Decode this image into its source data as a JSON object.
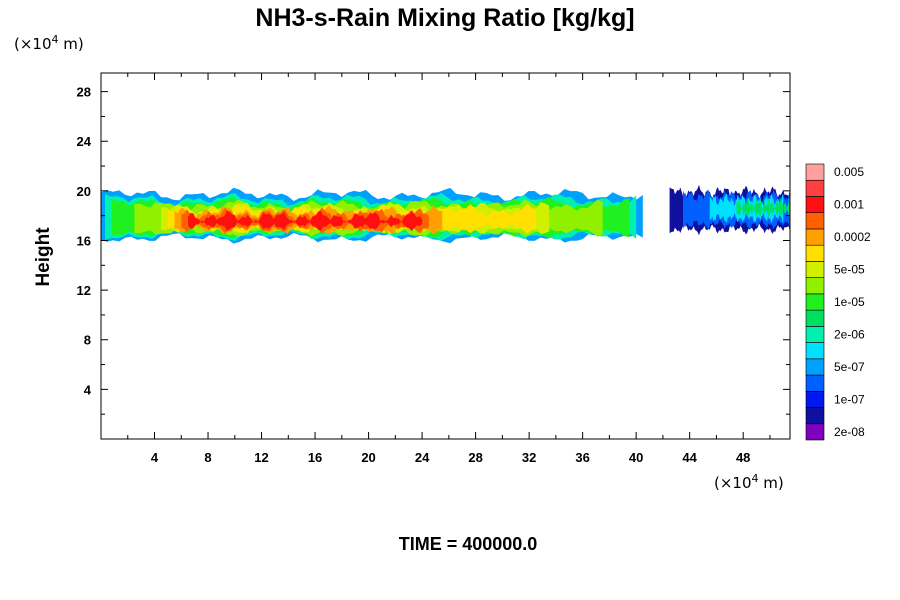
{
  "chart_data": {
    "type": "heatmap",
    "title": "NH3-s-Rain Mixing Ratio [kg/kg]",
    "ylabel": "Height",
    "x_units_prefix": "(×10",
    "x_units_exp": "4",
    "x_units_suffix": " m)",
    "y_units_prefix": "(×10",
    "y_units_exp": "4",
    "y_units_suffix": " m)",
    "xlim": [
      0,
      51.5
    ],
    "ylim": [
      0,
      29.5
    ],
    "x_ticks": [
      4,
      8,
      12,
      16,
      20,
      24,
      28,
      32,
      36,
      40,
      44,
      48
    ],
    "y_ticks": [
      4,
      8,
      12,
      16,
      20,
      24,
      28
    ],
    "colorbar": {
      "colors": [
        "#7f00bf",
        "#10109e",
        "#0018f0",
        "#0060ff",
        "#00a0ff",
        "#00e0ff",
        "#00f0b0",
        "#00e060",
        "#20f020",
        "#90f000",
        "#d0f000",
        "#ffe000",
        "#ffa000",
        "#ff6000",
        "#ff1010",
        "#ff4040",
        "#ffa0a0"
      ],
      "labels": [
        "2e-08",
        "1e-07",
        "5e-07",
        "2e-06",
        "1e-05",
        "5e-05",
        "0.0002",
        "0.001",
        "0.005"
      ]
    },
    "field": {
      "description": "cloud layer between heights ~16 and ~20 (x10^4 m); strongest values near 16-18.5 height for x 5-24",
      "segments": [
        {
          "x": [
            0,
            40.5
          ],
          "bottom": 16.2,
          "top": 19.8,
          "peak": "0.001"
        },
        {
          "x": [
            42.5,
            51.5
          ],
          "bottom": 16.8,
          "top": 20.0,
          "peak": "1e-05"
        }
      ]
    }
  },
  "footer": {
    "time_label": "TIME = 400000.0"
  }
}
